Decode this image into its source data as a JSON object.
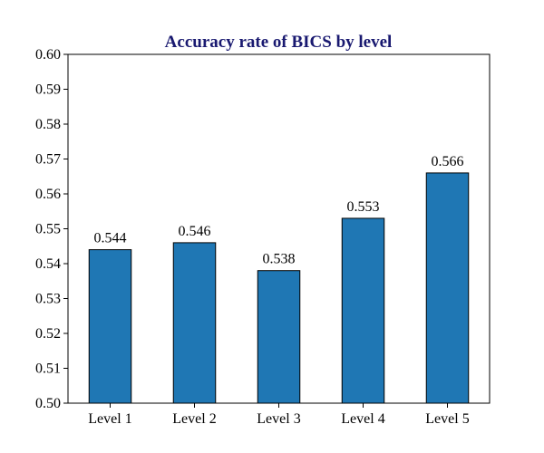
{
  "chart_data": {
    "type": "bar",
    "title": "Accuracy rate of BICS by level",
    "xlabel": "",
    "ylabel": "",
    "categories": [
      "Level 1",
      "Level 2",
      "Level 3",
      "Level 4",
      "Level 5"
    ],
    "values": [
      0.544,
      0.546,
      0.538,
      0.553,
      0.566
    ],
    "value_labels": [
      "0.544",
      "0.546",
      "0.538",
      "0.553",
      "0.566"
    ],
    "ylim": [
      0.5,
      0.6
    ],
    "yticks": [
      0.5,
      0.51,
      0.52,
      0.53,
      0.54,
      0.55,
      0.56,
      0.57,
      0.58,
      0.59,
      0.6
    ],
    "ytick_labels": [
      "0.50",
      "0.51",
      "0.52",
      "0.53",
      "0.54",
      "0.55",
      "0.56",
      "0.57",
      "0.58",
      "0.59",
      "0.60"
    ],
    "grid": false,
    "legend": "none",
    "colors": {
      "bar": "#1f77b4",
      "bar_edge": "#000000",
      "title": "#191970"
    }
  }
}
